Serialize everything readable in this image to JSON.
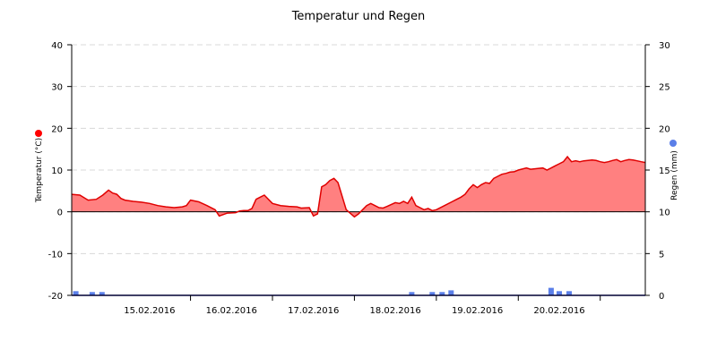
{
  "chart_data": {
    "type": "area",
    "title": "Temperatur und Regen",
    "x_ticks": [
      "15.02.2016",
      "16.02.2016",
      "17.02.2016",
      "18.02.2016",
      "19.02.2016",
      "20.02.2016"
    ],
    "y_left": {
      "label": "Temperatur (°C)",
      "ticks": [
        40,
        30,
        20,
        10,
        0,
        -10,
        -20
      ],
      "ylim": [
        -20,
        40
      ],
      "marker_color": "#ff0000"
    },
    "y_right": {
      "label": "Regen (mm)",
      "ticks": [
        30,
        25,
        20,
        15,
        10,
        5,
        0
      ],
      "ylim": [
        0,
        30
      ],
      "marker_color": "#5b7fe8"
    },
    "x_domain_days": [
      14.55,
      21.55
    ],
    "grid": "horizontal-dashed",
    "series": [
      {
        "name": "Temperatur",
        "kind": "area",
        "line_color": "#e00000",
        "fill_color": "#ff8080",
        "x": [
          14.55,
          14.65,
          14.75,
          14.85,
          14.93,
          15.0,
          15.05,
          15.1,
          15.15,
          15.2,
          15.3,
          15.4,
          15.5,
          15.6,
          15.7,
          15.8,
          15.9,
          15.95,
          16.0,
          16.1,
          16.2,
          16.3,
          16.35,
          16.45,
          16.55,
          16.6,
          16.65,
          16.7,
          16.75,
          16.8,
          16.85,
          16.9,
          17.0,
          17.1,
          17.2,
          17.3,
          17.35,
          17.45,
          17.5,
          17.55,
          17.6,
          17.65,
          17.7,
          17.75,
          17.8,
          17.9,
          18.0,
          18.05,
          18.1,
          18.15,
          18.2,
          18.25,
          18.3,
          18.35,
          18.4,
          18.5,
          18.55,
          18.6,
          18.65,
          18.7,
          18.75,
          18.8,
          18.85,
          18.9,
          18.95,
          19.0,
          19.1,
          19.2,
          19.3,
          19.35,
          19.4,
          19.45,
          19.5,
          19.55,
          19.6,
          19.65,
          19.7,
          19.75,
          19.8,
          19.85,
          19.9,
          19.95,
          20.0,
          20.1,
          20.15,
          20.2,
          20.25,
          20.3,
          20.35,
          20.4,
          20.45,
          20.5,
          20.55,
          20.6,
          20.65,
          20.7,
          20.75,
          20.8,
          20.85,
          20.9,
          20.95,
          21.0,
          21.05,
          21.1,
          21.15,
          21.2,
          21.25,
          21.3,
          21.35,
          21.4,
          21.45,
          21.5,
          21.55
        ],
        "y": [
          4.2,
          4.0,
          2.8,
          3.0,
          4.0,
          5.2,
          4.5,
          4.2,
          3.2,
          2.8,
          2.5,
          2.3,
          2.0,
          1.5,
          1.2,
          1.0,
          1.2,
          1.5,
          2.8,
          2.4,
          1.5,
          0.5,
          -1.0,
          -0.3,
          -0.2,
          0.2,
          0.3,
          0.3,
          0.8,
          3.0,
          3.5,
          4.0,
          2.0,
          1.5,
          1.3,
          1.2,
          0.9,
          1.0,
          -1.0,
          -0.5,
          6.0,
          6.5,
          7.5,
          8.0,
          7.0,
          0.5,
          -1.2,
          -0.5,
          0.5,
          1.5,
          2.0,
          1.5,
          1.0,
          0.9,
          1.3,
          2.2,
          2.0,
          2.5,
          2.0,
          3.5,
          1.5,
          1.0,
          0.5,
          0.8,
          0.3,
          0.5,
          1.5,
          2.5,
          3.5,
          4.2,
          5.5,
          6.5,
          5.8,
          6.5,
          7.0,
          6.8,
          8.0,
          8.5,
          9.0,
          9.2,
          9.5,
          9.6,
          10.0,
          10.5,
          10.2,
          10.3,
          10.4,
          10.5,
          10.0,
          10.5,
          11.0,
          11.5,
          12.0,
          13.2,
          12.0,
          12.2,
          12.0,
          12.2,
          12.3,
          12.4,
          12.3,
          12.0,
          11.8,
          12.0,
          12.3,
          12.5,
          12.0,
          12.3,
          12.5,
          12.4,
          12.2,
          12.0,
          11.8
        ]
      },
      {
        "name": "Regen",
        "kind": "bar",
        "axis": "right",
        "color": "#5b7fe8",
        "x": [
          14.6,
          14.8,
          14.92,
          18.7,
          18.95,
          19.07,
          19.18,
          20.4,
          20.5,
          20.62
        ],
        "y": [
          0.5,
          0.4,
          0.4,
          0.4,
          0.4,
          0.4,
          0.6,
          0.9,
          0.5,
          0.5
        ]
      }
    ]
  }
}
